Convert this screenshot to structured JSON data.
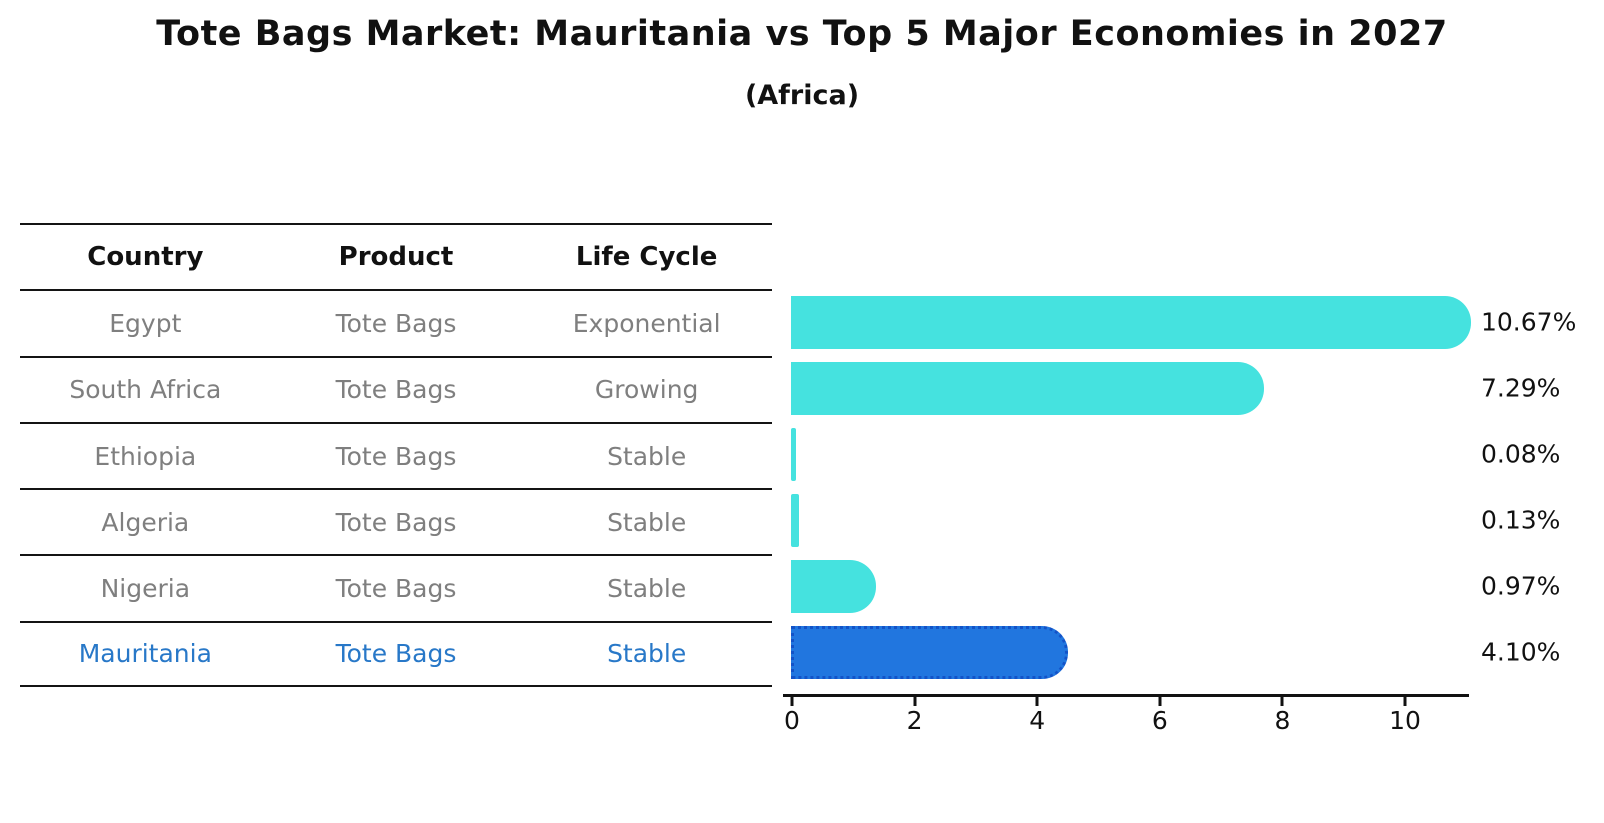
{
  "title": "Tote Bags Market: Mauritania vs Top 5 Major Economies in 2027",
  "subtitle": "(Africa)",
  "table": {
    "headers": [
      "Country",
      "Product",
      "Life Cycle"
    ],
    "rows": [
      {
        "country": "Egypt",
        "product": "Tote Bags",
        "life_cycle": "Exponential"
      },
      {
        "country": "South Africa",
        "product": "Tote Bags",
        "life_cycle": "Growing"
      },
      {
        "country": "Ethiopia",
        "product": "Tote Bags",
        "life_cycle": "Stable"
      },
      {
        "country": "Algeria",
        "product": "Tote Bags",
        "life_cycle": "Stable"
      },
      {
        "country": "Nigeria",
        "product": "Tote Bags",
        "life_cycle": "Stable"
      },
      {
        "country": "Mauritania",
        "product": "Tote Bags",
        "life_cycle": "Stable"
      }
    ],
    "highlight_row_index": 5
  },
  "chart_data": {
    "type": "bar",
    "orientation": "horizontal",
    "categories": [
      "Egypt",
      "South Africa",
      "Ethiopia",
      "Algeria",
      "Nigeria",
      "Mauritania"
    ],
    "values": [
      10.67,
      7.29,
      0.08,
      0.13,
      0.97,
      4.1
    ],
    "value_labels": [
      "10.67%",
      "7.29%",
      "0.08%",
      "0.13%",
      "0.97%",
      "4.10%"
    ],
    "x_ticks": [
      0,
      2,
      4,
      6,
      8,
      10
    ],
    "xlim": [
      0,
      11.2
    ],
    "grid": false,
    "legend": "none",
    "bar_color": "#45E2DF",
    "highlight_bar_color": "#2176DF",
    "highlight_border_color": "#1353C8",
    "highlight_index": 5,
    "title": "Tote Bags Market: Mauritania vs Top 5 Major Economies in 2027",
    "subtitle": "(Africa)",
    "xlabel": "",
    "ylabel": ""
  },
  "colors": {
    "table_text": "#7f7f7f",
    "highlight_text": "#2878C8",
    "line_color": "#141414"
  }
}
